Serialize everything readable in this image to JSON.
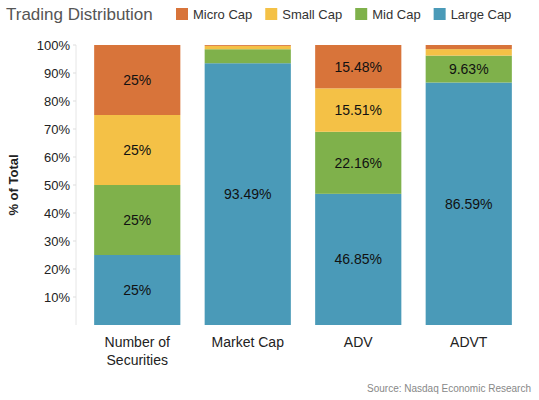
{
  "chart_data": {
    "type": "bar",
    "stacked": true,
    "title": "Trading Distribution",
    "y_label": "% of Total",
    "annotation": "Source: Nasdaq Economic Research",
    "categories": [
      "Number of Securities",
      "Market Cap",
      "ADV",
      "ADVT"
    ],
    "series": [
      {
        "name": "Large Cap",
        "color": "#4a9ab8",
        "values": [
          25,
          93.49,
          46.85,
          86.59
        ],
        "value_labels": [
          "25%",
          "93.49%",
          "46.85%",
          "86.59%"
        ]
      },
      {
        "name": "Mid Cap",
        "color": "#7fb14b",
        "values": [
          25,
          5.0,
          22.16,
          9.63
        ],
        "value_labels": [
          "25%",
          null,
          "22.16%",
          "9.63%"
        ]
      },
      {
        "name": "Small Cap",
        "color": "#f4c146",
        "values": [
          25,
          1.2,
          15.51,
          2.3
        ],
        "value_labels": [
          "25%",
          null,
          "15.51%",
          null
        ]
      },
      {
        "name": "Micro Cap",
        "color": "#d8743a",
        "values": [
          25,
          0.31,
          15.48,
          1.48
        ],
        "value_labels": [
          "25%",
          null,
          "15.48%",
          null
        ]
      }
    ],
    "ylim": [
      0,
      100
    ],
    "yticks": [
      {
        "value": 10,
        "label": "10%"
      },
      {
        "value": 20,
        "label": "20%"
      },
      {
        "value": 30,
        "label": "30%"
      },
      {
        "value": 40,
        "label": "40%"
      },
      {
        "value": 50,
        "label": "50%"
      },
      {
        "value": 60,
        "label": "60%"
      },
      {
        "value": 70,
        "label": "70%"
      },
      {
        "value": 80,
        "label": "80%"
      },
      {
        "value": 90,
        "label": "90%"
      },
      {
        "value": 100,
        "label": "100%"
      }
    ],
    "grid": false,
    "legend": "top",
    "data_labels": true
  }
}
